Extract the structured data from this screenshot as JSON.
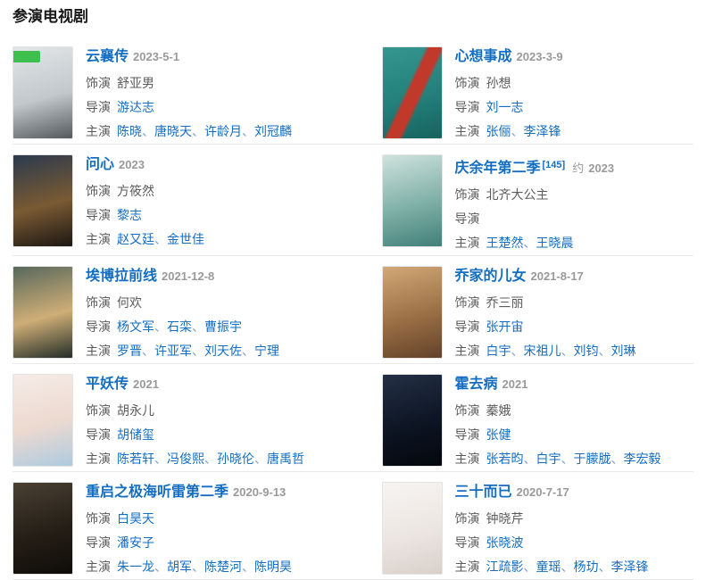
{
  "page": {
    "heading": "参演电视剧"
  },
  "labels": {
    "role": "饰演",
    "director": "导演",
    "cast": "主演",
    "separator": "、"
  },
  "colors": {
    "link_blue": "#136ec2",
    "date_gray": "#9a9a9c",
    "label_gray": "#5c5c5c",
    "divider": "#e9e9e9",
    "badge_green": "#3fbf4d"
  },
  "entries": [
    {
      "title": "云襄传",
      "date": "2023-5-1",
      "role": "舒亚男",
      "role_is_link": false,
      "directors": [
        "游达志"
      ],
      "cast": [
        "陈晓",
        "唐晓天",
        "许龄月",
        "刘冠麟"
      ],
      "badge": true,
      "poster_colors": [
        "#e3e6e8",
        "#c2c8cc",
        "#54595d"
      ],
      "poster_accent": ""
    },
    {
      "title": "心想事成",
      "date": "2023-3-9",
      "role": "孙想",
      "role_is_link": false,
      "directors": [
        "刘一志"
      ],
      "cast": [
        "张俪",
        "李泽锋"
      ],
      "badge": false,
      "poster_colors": [
        "#35968f",
        "#23807b",
        "#176360"
      ],
      "poster_accent": "#c0392b"
    },
    {
      "title": "问心",
      "date": "2023",
      "role": "方筱然",
      "role_is_link": false,
      "directors": [
        "黎志"
      ],
      "cast": [
        "赵又廷",
        "金世佳"
      ],
      "badge": false,
      "poster_colors": [
        "#2b3a4d",
        "#7a5a33",
        "#1c1713"
      ],
      "poster_accent": ""
    },
    {
      "title": "庆余年第二季",
      "ref": "[145]",
      "date_prefix": "约",
      "date": "2023",
      "role": "北齐大公主",
      "role_is_link": false,
      "directors": [],
      "cast": [
        "王楚然",
        "王晓晨"
      ],
      "badge": false,
      "poster_colors": [
        "#cfe2dd",
        "#7fb0a7",
        "#417f78"
      ],
      "poster_accent": ""
    },
    {
      "title": "埃博拉前线",
      "date": "2021-12-8",
      "role": "何欢",
      "role_is_link": false,
      "directors": [
        "杨文军",
        "石栾",
        "曹振宇"
      ],
      "cast": [
        "罗晋",
        "许亚军",
        "刘天佐",
        "宁理"
      ],
      "badge": false,
      "poster_colors": [
        "#57685c",
        "#cfae77",
        "#232e28"
      ],
      "poster_accent": ""
    },
    {
      "title": "乔家的儿女",
      "date": "2021-8-17",
      "role": "乔三丽",
      "role_is_link": false,
      "directors": [
        "张开宙"
      ],
      "cast": [
        "白宇",
        "宋祖儿",
        "刘钧",
        "刘琳"
      ],
      "badge": false,
      "poster_colors": [
        "#d2a878",
        "#9a6f45",
        "#634229"
      ],
      "poster_accent": ""
    },
    {
      "title": "平妖传",
      "date": "2021",
      "role": "胡永儿",
      "role_is_link": false,
      "directors": [
        "胡储玺"
      ],
      "cast": [
        "陈若轩",
        "冯俊熙",
        "孙晓伦",
        "唐禹哲"
      ],
      "badge": false,
      "poster_colors": [
        "#f5ece7",
        "#ecd9d0",
        "#aecbe0"
      ],
      "poster_accent": ""
    },
    {
      "title": "霍去病",
      "date": "2021",
      "role": "蓁娥",
      "role_is_link": false,
      "directors": [
        "张健"
      ],
      "cast": [
        "张若昀",
        "白宇",
        "于朦胧",
        "李宏毅"
      ],
      "badge": false,
      "poster_colors": [
        "#232f45",
        "#0d1523",
        "#04070d"
      ],
      "poster_accent": ""
    },
    {
      "title": "重启之极海听雷第二季",
      "date": "2020-9-13",
      "role": "白昊天",
      "role_is_link": true,
      "directors": [
        "潘安子"
      ],
      "cast": [
        "朱一龙",
        "胡军",
        "陈楚河",
        "陈明昊"
      ],
      "badge": false,
      "poster_colors": [
        "#4a4034",
        "#241e16",
        "#0f0c08"
      ],
      "poster_accent": ""
    },
    {
      "title": "三十而已",
      "date": "2020-7-17",
      "role": "钟晓芹",
      "role_is_link": false,
      "directors": [
        "张晓波"
      ],
      "cast": [
        "江疏影",
        "童瑶",
        "杨玏",
        "李泽锋"
      ],
      "badge": false,
      "poster_colors": [
        "#f7f4f2",
        "#ece6e2",
        "#d9d0ca"
      ],
      "poster_accent": ""
    }
  ]
}
